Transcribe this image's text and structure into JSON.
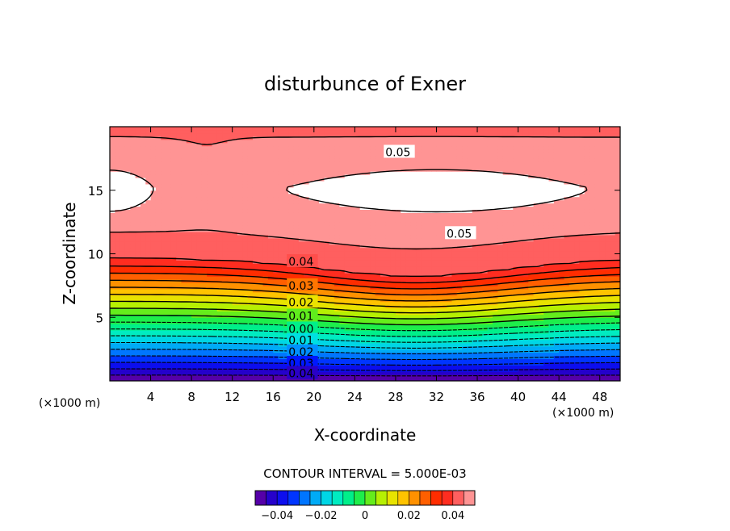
{
  "chart_data": {
    "type": "contour",
    "title": "disturbunce of Exner",
    "xlabel": "X-coordinate",
    "ylabel": "Z-coordinate",
    "x_unit": "(×1000 m)",
    "y_unit": "(×1000 m)",
    "xlim": [
      0,
      50
    ],
    "ylim": [
      0,
      20
    ],
    "x_ticks": [
      {
        "value": 4,
        "label": "4"
      },
      {
        "value": 8,
        "label": "8"
      },
      {
        "value": 12,
        "label": "12"
      },
      {
        "value": 16,
        "label": "16"
      },
      {
        "value": 20,
        "label": "20"
      },
      {
        "value": 24,
        "label": "24"
      },
      {
        "value": 28,
        "label": "28"
      },
      {
        "value": 32,
        "label": "32"
      },
      {
        "value": 36,
        "label": "36"
      },
      {
        "value": 40,
        "label": "40"
      },
      {
        "value": 44,
        "label": "44"
      },
      {
        "value": 48,
        "label": "48"
      }
    ],
    "y_ticks": [
      {
        "value": 5,
        "label": "5"
      },
      {
        "value": 10,
        "label": "10"
      },
      {
        "value": 15,
        "label": "15"
      }
    ],
    "contour_interval_text": "CONTOUR INTERVAL = 5.000E-03",
    "contour_interval": 0.005,
    "value_range": [
      -0.05,
      0.05
    ],
    "contour_labels": [
      {
        "x": 27,
        "z": 18.0,
        "text": "0.05"
      },
      {
        "x": 33,
        "z": 11.6,
        "text": "0.05"
      },
      {
        "x": 17.5,
        "z": 9.4,
        "text": "0.04"
      },
      {
        "x": 17.5,
        "z": 7.5,
        "text": "0.03"
      },
      {
        "x": 17.5,
        "z": 6.2,
        "text": "0.02"
      },
      {
        "x": 17.5,
        "z": 5.1,
        "text": "0.01"
      },
      {
        "x": 17.5,
        "z": 4.1,
        "text": "0.00"
      },
      {
        "x": 17.5,
        "z": 3.2,
        "text": "0.01"
      },
      {
        "x": 17.5,
        "z": 2.3,
        "text": "0.02"
      },
      {
        "x": 17.5,
        "z": 1.4,
        "text": "0.03"
      },
      {
        "x": 17.5,
        "z": 0.6,
        "text": "0.04"
      }
    ],
    "colorbar": {
      "range": [
        -0.05,
        0.05
      ],
      "ticks": [
        {
          "value": -0.04,
          "label": "−0.04"
        },
        {
          "value": -0.02,
          "label": "−0.02"
        },
        {
          "value": 0,
          "label": "0"
        },
        {
          "value": 0.02,
          "label": "0.02"
        },
        {
          "value": 0.04,
          "label": "0.04"
        }
      ]
    }
  }
}
